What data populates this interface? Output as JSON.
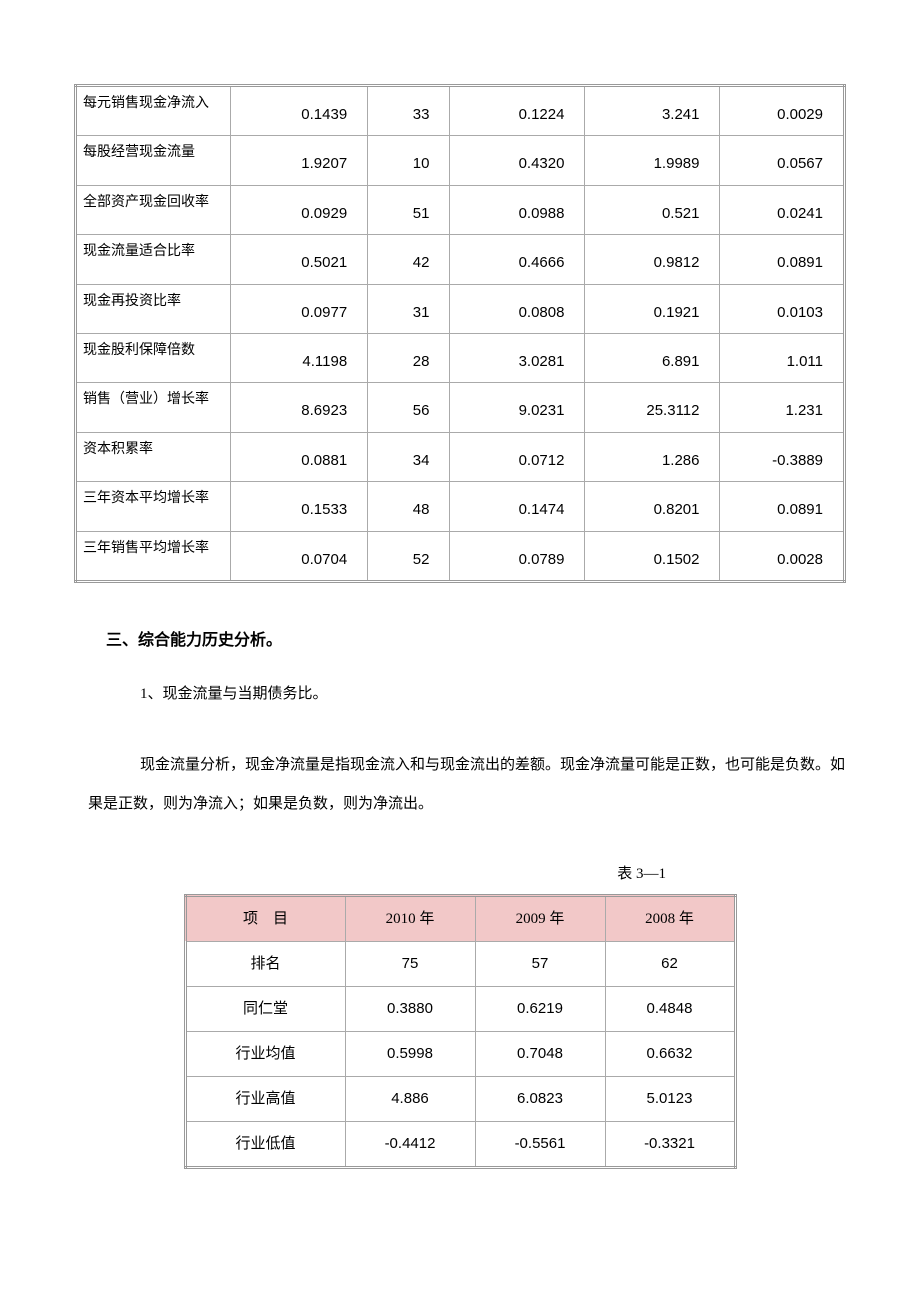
{
  "table1": {
    "rows": [
      {
        "label": "每元销售现金净流入",
        "v1": "0.1439",
        "v2": "33",
        "v3": "0.1224",
        "v4": "3.241",
        "v5": "0.0029"
      },
      {
        "label": "每股经营现金流量",
        "v1": "1.9207",
        "v2": "10",
        "v3": "0.4320",
        "v4": "1.9989",
        "v5": "0.0567"
      },
      {
        "label": "全部资产现金回收率",
        "v1": "0.0929",
        "v2": "51",
        "v3": "0.0988",
        "v4": "0.521",
        "v5": "0.0241"
      },
      {
        "label": "现金流量适合比率",
        "v1": "0.5021",
        "v2": "42",
        "v3": "0.4666",
        "v4": "0.9812",
        "v5": "0.0891"
      },
      {
        "label": "现金再投资比率",
        "v1": "0.0977",
        "v2": "31",
        "v3": "0.0808",
        "v4": "0.1921",
        "v5": "0.0103"
      },
      {
        "label": "现金股利保障倍数",
        "v1": "4.1198",
        "v2": "28",
        "v3": "3.0281",
        "v4": "6.891",
        "v5": "1.011"
      },
      {
        "label": "销售（营业）增长率",
        "v1": "8.6923",
        "v2": "56",
        "v3": "9.0231",
        "v4": "25.3112",
        "v5": "1.231"
      },
      {
        "label": "资本积累率",
        "v1": "0.0881",
        "v2": "34",
        "v3": "0.0712",
        "v4": "1.286",
        "v5": "-0.3889"
      },
      {
        "label": "三年资本平均增长率",
        "v1": "0.1533",
        "v2": "48",
        "v3": "0.1474",
        "v4": "0.8201",
        "v5": "0.0891"
      },
      {
        "label": "三年销售平均增长率",
        "v1": "0.0704",
        "v2": "52",
        "v3": "0.0789",
        "v4": "0.1502",
        "v5": "0.0028"
      }
    ]
  },
  "heading3": "三、综合能力历史分析。",
  "sub1": "1、现金流量与当期债务比。",
  "paragraph": "现金流量分析，现金净流量是指现金流入和与现金流出的差额。现金净流量可能是正数，也可能是负数。如果是正数，则为净流入；如果是负数，则为净流出。",
  "table_caption": "表 3—1",
  "table2": {
    "header": {
      "item": "项　目",
      "y1": "2010 年",
      "y2": "2009 年",
      "y3": "2008 年"
    },
    "rows": [
      {
        "item": "排名",
        "y1": "75",
        "y2": "57",
        "y3": "62"
      },
      {
        "item": "同仁堂",
        "y1": "0.3880",
        "y2": "0.6219",
        "y3": "0.4848"
      },
      {
        "item": "行业均值",
        "y1": "0.5998",
        "y2": "0.7048",
        "y3": "0.6632"
      },
      {
        "item": "行业高值",
        "y1": "4.886",
        "y2": "6.0823",
        "y3": "5.0123"
      },
      {
        "item": "行业低值",
        "y1": "-0.4412",
        "y2": "-0.5561",
        "y3": "-0.3321"
      }
    ]
  }
}
